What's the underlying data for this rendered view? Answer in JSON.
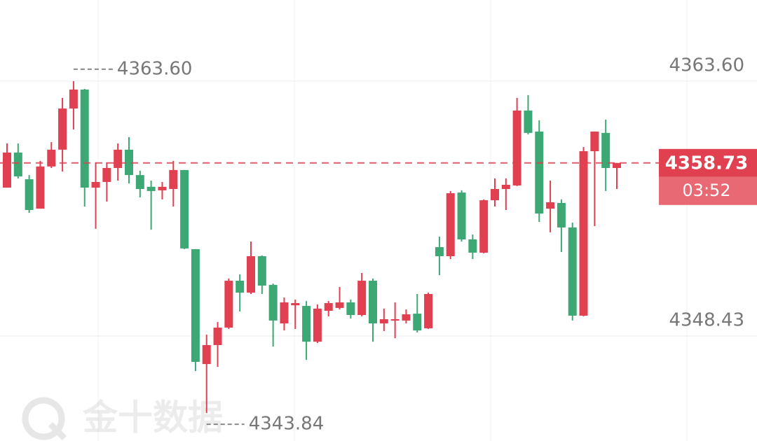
{
  "chart_data": {
    "type": "candlestick",
    "up_color": "#e0404f",
    "down_color": "#3ea874",
    "ylim": [
      4342.18,
      4368.43
    ],
    "yticks": [
      {
        "value": 4363.6,
        "label": "4363.60"
      },
      {
        "value": 4348.43,
        "label": "4348.43"
      }
    ],
    "grid": true,
    "max_marker": {
      "value": 4363.6,
      "label": "4363.60"
    },
    "min_marker": 4343.84,
    "last_price": 4358.73,
    "countdown": "03:52",
    "watermark": "金十数据",
    "open": [
      4357.26,
      4359.35,
      4357.76,
      4356.01,
      4358.52,
      4359.52,
      4361.97,
      4363.1,
      4357.26,
      4357.6,
      4358.43,
      4359.52,
      4358.01,
      4357.31,
      4357.1,
      4357.18,
      4358.31,
      4353.6,
      4346.76,
      4347.89,
      4348.93,
      4351.72,
      4351.01,
      4353.18,
      4351.47,
      4349.18,
      4350.26,
      4350.22,
      4348.09,
      4349.93,
      4350.1,
      4350.43,
      4349.68,
      4351.72,
      4349.18,
      4349.39,
      4349.35,
      4349.76,
      4348.89,
      4353.72,
      4353.18,
      4356.97,
      4354.18,
      4353.39,
      4356.51,
      4357.18,
      4357.39,
      4361.85,
      4360.6,
      4356.01,
      4356.35,
      4354.89,
      4349.64,
      4359.43,
      4360.52,
      4358.43
    ],
    "high": [
      4359.89,
      4359.89,
      4358.01,
      4358.85,
      4359.97,
      4362.6,
      4363.6,
      4363.14,
      4358.77,
      4358.77,
      4359.89,
      4360.27,
      4358.27,
      4357.68,
      4357.6,
      4358.85,
      4358.31,
      4353.6,
      4348.51,
      4349.26,
      4351.85,
      4352.1,
      4354.05,
      4353.22,
      4351.55,
      4350.72,
      4350.6,
      4350.51,
      4350.31,
      4350.51,
      4351.35,
      4350.6,
      4352.18,
      4351.85,
      4350.06,
      4350.43,
      4350.01,
      4350.93,
      4351.01,
      4354.35,
      4357.06,
      4357.1,
      4354.47,
      4356.56,
      4357.81,
      4357.81,
      4362.6,
      4362.77,
      4361.27,
      4357.68,
      4356.56,
      4355.18,
      4359.68,
      4360.6,
      4361.31,
      4358.73
    ],
    "low": [
      4357.26,
      4357.81,
      4355.76,
      4356.01,
      4358.43,
      4358.22,
      4360.72,
      4356.14,
      4354.81,
      4356.43,
      4357.68,
      4357.51,
      4356.68,
      4354.76,
      4356.56,
      4356.14,
      4353.6,
      4346.34,
      4343.84,
      4346.59,
      4348.85,
      4349.89,
      4350.93,
      4350.93,
      4347.8,
      4348.76,
      4348.85,
      4347.01,
      4348.01,
      4349.6,
      4350.01,
      4349.47,
      4349.6,
      4348.09,
      4348.72,
      4348.3,
      4349.18,
      4348.64,
      4348.85,
      4352.05,
      4353.01,
      4354.05,
      4353.01,
      4353.35,
      4356.14,
      4355.93,
      4357.35,
      4360.43,
      4355.22,
      4354.6,
      4353.43,
      4349.35,
      4349.6,
      4354.97,
      4357.06,
      4357.18
    ],
    "close": [
      4359.35,
      4357.93,
      4355.93,
      4358.52,
      4359.52,
      4361.97,
      4363.1,
      4357.26,
      4357.6,
      4358.43,
      4359.52,
      4358.01,
      4357.18,
      4357.06,
      4357.31,
      4358.31,
      4353.64,
      4346.89,
      4347.89,
      4348.93,
      4351.72,
      4351.01,
      4353.18,
      4351.43,
      4349.35,
      4350.43,
      4350.39,
      4348.09,
      4350.06,
      4350.39,
      4350.43,
      4349.68,
      4351.72,
      4349.18,
      4349.43,
      4349.43,
      4349.72,
      4348.76,
      4350.93,
      4353.18,
      4356.93,
      4354.18,
      4353.39,
      4356.51,
      4357.18,
      4357.43,
      4361.85,
      4360.52,
      4355.72,
      4356.39,
      4354.89,
      4349.64,
      4359.43,
      4360.6,
      4358.43,
      4358.73
    ]
  }
}
